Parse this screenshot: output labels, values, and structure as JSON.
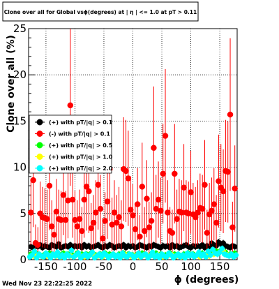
{
  "timestamp": "Wed Nov 23 22:22:25 2022",
  "chart_data": {
    "type": "scatter",
    "title": "Clone  over all for Global vsϕ(degrees) at |  η | <= 1.0 at pT > 0.11",
    "xlabel": "ϕ (degrees)",
    "ylabel": "Clone  over all (%)",
    "xlim": [
      -180,
      180
    ],
    "ylim": [
      0,
      25
    ],
    "x_ticks": [
      -150,
      -100,
      -50,
      0,
      50,
      100,
      150
    ],
    "y_ticks": [
      0,
      5,
      10,
      15,
      20,
      25
    ],
    "grid": true,
    "legend_position": "center-left",
    "series": [
      {
        "name": "(+) with pT/|q| > 0.1",
        "color": "#000000",
        "has_error_bars": true,
        "x": [
          -176,
          -172,
          -168,
          -164,
          -160,
          -156,
          -152,
          -148,
          -144,
          -140,
          -136,
          -132,
          -128,
          -124,
          -120,
          -116,
          -112,
          -108,
          -104,
          -100,
          -96,
          -92,
          -88,
          -84,
          -80,
          -76,
          -72,
          -68,
          -64,
          -60,
          -56,
          -52,
          -48,
          -44,
          -40,
          -36,
          -32,
          -28,
          -24,
          -20,
          -16,
          -12,
          -8,
          -4,
          0,
          4,
          8,
          12,
          16,
          20,
          24,
          28,
          32,
          36,
          40,
          44,
          48,
          52,
          56,
          60,
          64,
          68,
          72,
          76,
          80,
          84,
          88,
          92,
          96,
          100,
          104,
          108,
          112,
          116,
          120,
          124,
          128,
          132,
          136,
          140,
          144,
          148,
          152,
          156,
          160,
          164,
          168,
          172,
          176
        ],
        "y": [
          1.4,
          1.3,
          1.5,
          1.4,
          1.6,
          1.3,
          1.5,
          1.4,
          1.3,
          1.6,
          1.5,
          1.4,
          1.7,
          1.3,
          1.4,
          1.5,
          1.4,
          1.6,
          1.3,
          1.5,
          1.4,
          1.5,
          1.3,
          1.6,
          1.4,
          1.5,
          1.3,
          1.4,
          1.5,
          1.6,
          1.4,
          1.3,
          1.5,
          1.4,
          1.6,
          1.5,
          1.3,
          1.4,
          1.5,
          1.4,
          1.6,
          1.3,
          1.5,
          1.4,
          1.5,
          1.3,
          1.4,
          1.6,
          1.5,
          1.4,
          1.3,
          1.5,
          1.4,
          1.6,
          1.5,
          1.4,
          1.3,
          1.5,
          1.4,
          1.5,
          1.3,
          1.6,
          1.4,
          1.5,
          1.3,
          1.4,
          1.5,
          1.6,
          1.4,
          1.3,
          1.5,
          1.4,
          1.5,
          1.4,
          1.6,
          1.3,
          1.5,
          1.4,
          1.8,
          1.6,
          1.5,
          1.9,
          1.7,
          1.8,
          1.5,
          1.4,
          1.3,
          1.5,
          1.4
        ]
      },
      {
        "name": "(-) with pT/|q| > 0.1",
        "color": "#ff0000",
        "has_error_bars": true,
        "x": [
          -176,
          -172,
          -168,
          -164,
          -160,
          -156,
          -152,
          -148,
          -144,
          -140,
          -136,
          -132,
          -128,
          -124,
          -120,
          -116,
          -112,
          -108,
          -104,
          -100,
          -96,
          -92,
          -88,
          -84,
          -80,
          -76,
          -72,
          -68,
          -64,
          -60,
          -56,
          -52,
          -48,
          -44,
          -40,
          -36,
          -32,
          -28,
          -24,
          -20,
          -16,
          -12,
          -8,
          -4,
          0,
          4,
          8,
          12,
          16,
          20,
          24,
          28,
          32,
          36,
          40,
          44,
          48,
          52,
          56,
          60,
          64,
          68,
          72,
          76,
          80,
          84,
          88,
          92,
          96,
          100,
          104,
          108,
          112,
          116,
          120,
          124,
          128,
          132,
          136,
          140,
          144,
          148,
          152,
          156,
          160,
          164,
          168,
          172,
          176
        ],
        "y": [
          5.1,
          8.6,
          1.8,
          1.6,
          5.0,
          4.6,
          4.5,
          4.4,
          8.0,
          3.6,
          2.7,
          5.2,
          4.4,
          4.3,
          7.0,
          4.3,
          6.4,
          16.7,
          6.5,
          4.3,
          3.6,
          4.4,
          3.1,
          6.5,
          7.9,
          7.4,
          3.4,
          4.0,
          5.1,
          8.1,
          5.5,
          2.3,
          4.2,
          6.3,
          9.8,
          3.8,
          5.1,
          4.0,
          4.6,
          3.6,
          9.8,
          9.6,
          8.8,
          5.4,
          4.8,
          3.3,
          6.0,
          2.5,
          7.9,
          3.1,
          6.6,
          3.5,
          4.2,
          12.1,
          5.5,
          6.5,
          5.3,
          9.3,
          13.4,
          5.1,
          3.1,
          2.9,
          9.3,
          4.4,
          5.2,
          5.1,
          7.8,
          5.1,
          5.0,
          7.3,
          4.9,
          4.6,
          5.1,
          5.6,
          5.5,
          8.1,
          2.9,
          4.9,
          5.3,
          6.0,
          4.0,
          8.5,
          7.8,
          7.4,
          9.6,
          9.5,
          15.7,
          3.5,
          7.7
        ]
      },
      {
        "name": "(+) with pT/|q| > 0.5",
        "color": "#00ff00",
        "has_error_bars": true,
        "x": [
          -176,
          -168,
          -160,
          -152,
          -144,
          -136,
          -128,
          -120,
          -112,
          -104,
          -96,
          -88,
          -80,
          -72,
          -64,
          -56,
          -48,
          -40,
          -32,
          -24,
          -16,
          -8,
          0,
          8,
          16,
          24,
          32,
          40,
          48,
          56,
          64,
          72,
          80,
          88,
          96,
          104,
          112,
          120,
          128,
          136,
          144,
          152,
          160,
          168,
          176
        ],
        "y": [
          0.6,
          0.7,
          0.5,
          0.6,
          0.7,
          0.5,
          0.6,
          0.7,
          0.6,
          0.5,
          0.7,
          0.6,
          0.6,
          0.7,
          0.5,
          0.6,
          0.7,
          0.6,
          0.5,
          0.6,
          0.7,
          0.6,
          0.5,
          0.6,
          0.7,
          0.5,
          0.6,
          0.7,
          0.6,
          0.5,
          0.7,
          0.6,
          0.5,
          0.6,
          0.7,
          0.6,
          0.5,
          0.7,
          0.6,
          0.8,
          0.9,
          1.0,
          0.8,
          0.6,
          0.7
        ]
      },
      {
        "name": "(+) with pT/|q| > 1.0",
        "color": "#ffff00",
        "has_error_bars": true,
        "x": [
          -172,
          -164,
          -156,
          -148,
          -140,
          -132,
          -124,
          -116,
          -108,
          -100,
          -92,
          -84,
          -76,
          -68,
          -60,
          -52,
          -44,
          -36,
          -28,
          -20,
          -12,
          -4,
          4,
          12,
          20,
          28,
          36,
          44,
          52,
          60,
          68,
          76,
          84,
          92,
          100,
          108,
          116,
          124,
          132,
          140,
          148,
          156,
          164,
          172
        ],
        "y": [
          0.4,
          0.5,
          0.3,
          0.4,
          0.5,
          0.4,
          0.3,
          0.5,
          0.4,
          0.4,
          0.5,
          0.3,
          0.4,
          0.5,
          0.4,
          0.3,
          0.4,
          0.5,
          0.4,
          0.3,
          0.5,
          0.4,
          0.4,
          0.3,
          0.5,
          0.4,
          0.4,
          0.5,
          0.3,
          0.4,
          0.5,
          0.4,
          0.3,
          0.4,
          0.5,
          0.4,
          0.3,
          0.5,
          0.4,
          0.6,
          0.7,
          0.9,
          0.5,
          0.4
        ]
      },
      {
        "name": "(+) with pT/|q| > 2.0",
        "color": "#00ffff",
        "has_error_bars": true,
        "x": [
          -178,
          -174,
          -170,
          -166,
          -162,
          -158,
          -154,
          -150,
          -146,
          -142,
          -138,
          -134,
          -130,
          -126,
          -122,
          -118,
          -114,
          -110,
          -106,
          -102,
          -98,
          -94,
          -90,
          -86,
          -82,
          -78,
          -74,
          -70,
          -66,
          -62,
          -58,
          -54,
          -50,
          -46,
          -42,
          -38,
          -34,
          -30,
          -26,
          -22,
          -18,
          -14,
          -10,
          -6,
          -2,
          2,
          6,
          10,
          14,
          18,
          22,
          26,
          30,
          34,
          38,
          42,
          46,
          50,
          54,
          58,
          62,
          66,
          70,
          74,
          78,
          82,
          86,
          90,
          94,
          98,
          102,
          106,
          110,
          114,
          118,
          122,
          126,
          130,
          134,
          138,
          142,
          146,
          150,
          154,
          158,
          162,
          166,
          170,
          174,
          178
        ],
        "y": [
          0.3,
          0.5,
          0.9,
          0.2,
          0.6,
          0.4,
          0.3,
          0.7,
          0.5,
          0.2,
          0.6,
          0.4,
          0.8,
          0.3,
          0.5,
          0.2,
          0.6,
          0.4,
          1.0,
          0.3,
          0.5,
          0.7,
          0.2,
          0.4,
          0.6,
          0.3,
          0.5,
          0.8,
          0.2,
          0.4,
          0.6,
          0.3,
          0.7,
          0.5,
          0.2,
          0.4,
          0.6,
          0.3,
          0.5,
          0.2,
          0.7,
          0.4,
          0.3,
          0.6,
          0.5,
          0.2,
          0.4,
          0.7,
          0.3,
          0.5,
          0.6,
          0.2,
          0.4,
          0.8,
          0.3,
          0.5,
          0.2,
          0.6,
          0.4,
          0.3,
          0.7,
          0.5,
          0.2,
          0.4,
          0.6,
          0.3,
          0.5,
          0.2,
          0.7,
          0.4,
          0.6,
          0.3,
          0.5,
          0.8,
          0.4,
          0.6,
          0.3,
          0.9,
          0.5,
          1.1,
          0.7,
          0.6,
          0.8,
          1.2,
          0.6,
          0.5,
          0.4,
          0.6,
          0.3,
          0.5
        ]
      }
    ]
  }
}
